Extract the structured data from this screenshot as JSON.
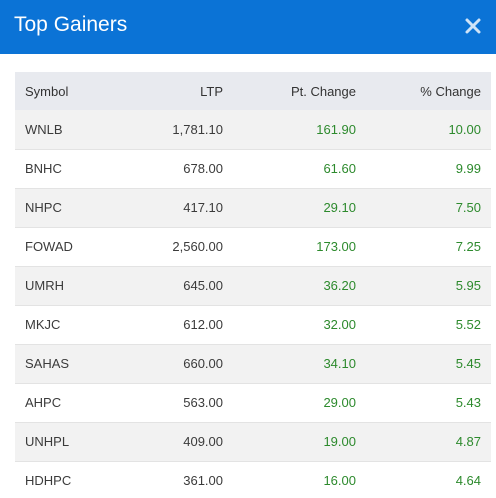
{
  "modal": {
    "title": "Top Gainers",
    "close_icon": "close-icon"
  },
  "colors": {
    "header_bg": "#0b73d6",
    "gain_text": "#2d8a2d",
    "table_header_bg": "#e8eaef"
  },
  "table": {
    "headers": {
      "symbol": "Symbol",
      "ltp": "LTP",
      "pt_change": "Pt. Change",
      "pct_change": "% Change"
    },
    "rows": [
      {
        "symbol": "WNLB",
        "ltp": "1,781.10",
        "pt_change": "161.90",
        "pct_change": "10.00"
      },
      {
        "symbol": "BNHC",
        "ltp": "678.00",
        "pt_change": "61.60",
        "pct_change": "9.99"
      },
      {
        "symbol": "NHPC",
        "ltp": "417.10",
        "pt_change": "29.10",
        "pct_change": "7.50"
      },
      {
        "symbol": "FOWAD",
        "ltp": "2,560.00",
        "pt_change": "173.00",
        "pct_change": "7.25"
      },
      {
        "symbol": "UMRH",
        "ltp": "645.00",
        "pt_change": "36.20",
        "pct_change": "5.95"
      },
      {
        "symbol": "MKJC",
        "ltp": "612.00",
        "pt_change": "32.00",
        "pct_change": "5.52"
      },
      {
        "symbol": "SAHAS",
        "ltp": "660.00",
        "pt_change": "34.10",
        "pct_change": "5.45"
      },
      {
        "symbol": "AHPC",
        "ltp": "563.00",
        "pt_change": "29.00",
        "pct_change": "5.43"
      },
      {
        "symbol": "UNHPL",
        "ltp": "409.00",
        "pt_change": "19.00",
        "pct_change": "4.87"
      },
      {
        "symbol": "HDHPC",
        "ltp": "361.00",
        "pt_change": "16.00",
        "pct_change": "4.64"
      }
    ]
  }
}
